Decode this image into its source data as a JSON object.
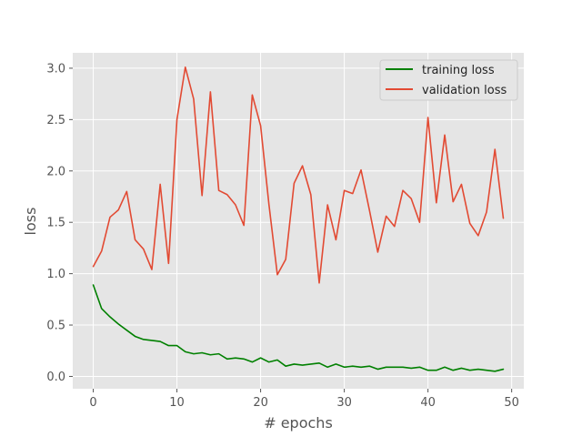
{
  "chart_data": {
    "type": "line",
    "title": "",
    "xlabel": "# epochs",
    "ylabel": "loss",
    "xlim": [
      -2.45,
      51.45
    ],
    "ylim": [
      -0.12,
      3.15
    ],
    "xticks": [
      0,
      10,
      20,
      30,
      40,
      50
    ],
    "yticks": [
      0.0,
      0.5,
      1.0,
      1.5,
      2.0,
      2.5,
      3.0
    ],
    "xtick_labels": [
      "0",
      "10",
      "20",
      "30",
      "40",
      "50"
    ],
    "ytick_labels": [
      "0.0",
      "0.5",
      "1.0",
      "1.5",
      "2.0",
      "2.5",
      "3.0"
    ],
    "grid": true,
    "legend_position": "top-right",
    "x": [
      0,
      1,
      2,
      3,
      4,
      5,
      6,
      7,
      8,
      9,
      10,
      11,
      12,
      13,
      14,
      15,
      16,
      17,
      18,
      19,
      20,
      21,
      22,
      23,
      24,
      25,
      26,
      27,
      28,
      29,
      30,
      31,
      32,
      33,
      34,
      35,
      36,
      37,
      38,
      39,
      40,
      41,
      42,
      43,
      44,
      45,
      46,
      47,
      48,
      49
    ],
    "series": [
      {
        "name": "training loss",
        "color": "#008000",
        "values": [
          0.89,
          0.66,
          0.58,
          0.51,
          0.45,
          0.39,
          0.36,
          0.35,
          0.34,
          0.3,
          0.3,
          0.24,
          0.22,
          0.23,
          0.21,
          0.22,
          0.17,
          0.18,
          0.17,
          0.14,
          0.18,
          0.14,
          0.16,
          0.1,
          0.12,
          0.11,
          0.12,
          0.13,
          0.09,
          0.12,
          0.09,
          0.1,
          0.09,
          0.1,
          0.07,
          0.09,
          0.09,
          0.09,
          0.08,
          0.09,
          0.06,
          0.06,
          0.09,
          0.06,
          0.08,
          0.06,
          0.07,
          0.06,
          0.05,
          0.07
        ]
      },
      {
        "name": "validation loss",
        "color": "#E24A33",
        "values": [
          1.07,
          1.22,
          1.55,
          1.62,
          1.8,
          1.33,
          1.24,
          1.04,
          1.87,
          1.1,
          2.5,
          3.01,
          2.7,
          1.76,
          2.77,
          1.81,
          1.77,
          1.67,
          1.47,
          2.74,
          2.44,
          1.67,
          0.99,
          1.14,
          1.88,
          2.05,
          1.77,
          0.91,
          1.67,
          1.33,
          1.81,
          1.78,
          2.01,
          1.62,
          1.21,
          1.56,
          1.46,
          1.81,
          1.73,
          1.5,
          2.52,
          1.69,
          2.35,
          1.7,
          1.87,
          1.49,
          1.37,
          1.6,
          2.21,
          1.54
        ]
      }
    ]
  }
}
